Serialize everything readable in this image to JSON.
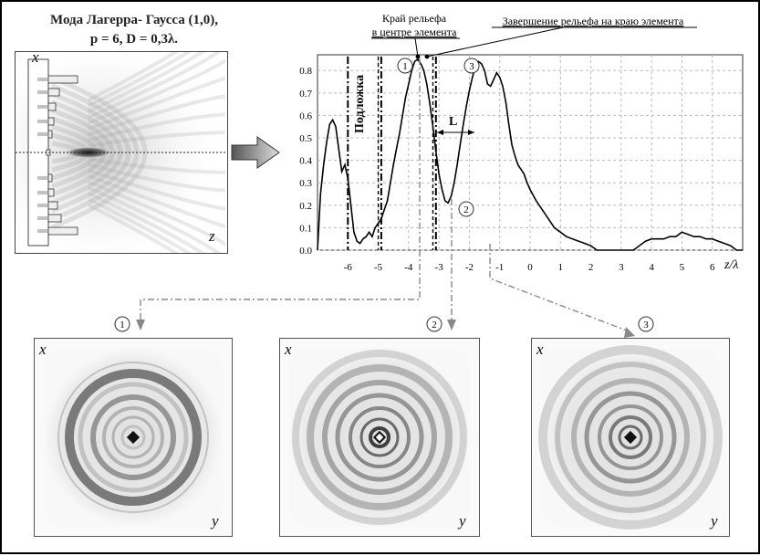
{
  "header": {
    "title_line1": "Мода Лагерра- Гаусса (1,0),",
    "title_line2": "p = 6, D = 0,3λ."
  },
  "sim_panel": {
    "x_label": "x",
    "z_label": "z"
  },
  "chart": {
    "annotation_center": "Край рельефа",
    "annotation_center_2": "в центре элемента",
    "annotation_edge": "Завершение рельефа на краю элемента",
    "substrate_label": "Подложка",
    "L_label": "L",
    "point_labels": [
      "1",
      "2",
      "3"
    ],
    "x_axis_label": "z/λ"
  },
  "chart_data": {
    "type": "line",
    "xlabel": "z/λ",
    "ylabel": "",
    "xlim": [
      -7,
      7
    ],
    "ylim": [
      0,
      0.87
    ],
    "x_ticks": [
      -6,
      -5,
      -4,
      -3,
      -2,
      -1,
      0,
      1,
      2,
      3,
      4,
      5,
      6
    ],
    "y_ticks": [
      0.0,
      0.1,
      0.2,
      0.3,
      0.4,
      0.5,
      0.6,
      0.7,
      0.8
    ],
    "y_tick_labels": [
      "0.0",
      "0.1",
      "0.2",
      "0.3",
      "0.4",
      "0.5",
      "0.6",
      "0.7",
      "0.8"
    ],
    "grid": true,
    "vertical_markers": [
      -6,
      -5,
      -4.9,
      -3.2,
      -3.1
    ],
    "series": [
      {
        "x": [
          -7.0,
          -6.9,
          -6.8,
          -6.7,
          -6.6,
          -6.5,
          -6.4,
          -6.3,
          -6.2,
          -6.1,
          -6.0,
          -5.9,
          -5.8,
          -5.7,
          -5.6,
          -5.5,
          -5.4,
          -5.3,
          -5.2,
          -5.1,
          -5.0,
          -4.9,
          -4.8,
          -4.7,
          -4.6,
          -4.5,
          -4.4,
          -4.3,
          -4.2,
          -4.1,
          -4.0,
          -3.9,
          -3.8,
          -3.7,
          -3.6,
          -3.5,
          -3.4,
          -3.3,
          -3.2,
          -3.1,
          -3.0,
          -2.9,
          -2.8,
          -2.7,
          -2.6,
          -2.5,
          -2.4,
          -2.3,
          -2.2,
          -2.1,
          -2.0,
          -1.9,
          -1.8,
          -1.7,
          -1.6,
          -1.5,
          -1.4,
          -1.3,
          -1.2,
          -1.1,
          -1.0,
          -0.9,
          -0.8,
          -0.7,
          -0.6,
          -0.5,
          -0.4,
          -0.3,
          -0.2,
          -0.1,
          0.0,
          0.2,
          0.4,
          0.6,
          0.8,
          1.0,
          1.2,
          1.4,
          1.6,
          1.8,
          2.0,
          2.2,
          2.4,
          2.6,
          2.8,
          3.0,
          3.2,
          3.4,
          3.6,
          3.8,
          4.0,
          4.2,
          4.4,
          4.6,
          4.8,
          5.0,
          5.2,
          5.4,
          5.6,
          5.8,
          6.0,
          6.2,
          6.4,
          6.6,
          6.8,
          7.0
        ],
        "y": [
          0.0,
          0.25,
          0.38,
          0.48,
          0.56,
          0.58,
          0.55,
          0.45,
          0.35,
          0.38,
          0.32,
          0.2,
          0.08,
          0.04,
          0.03,
          0.05,
          0.06,
          0.08,
          0.06,
          0.1,
          0.12,
          0.14,
          0.18,
          0.22,
          0.3,
          0.38,
          0.45,
          0.52,
          0.6,
          0.68,
          0.74,
          0.8,
          0.84,
          0.85,
          0.83,
          0.8,
          0.74,
          0.65,
          0.55,
          0.44,
          0.34,
          0.27,
          0.22,
          0.21,
          0.24,
          0.3,
          0.38,
          0.47,
          0.56,
          0.64,
          0.71,
          0.77,
          0.82,
          0.84,
          0.83,
          0.8,
          0.74,
          0.73,
          0.76,
          0.79,
          0.77,
          0.73,
          0.66,
          0.56,
          0.47,
          0.42,
          0.38,
          0.36,
          0.34,
          0.3,
          0.27,
          0.22,
          0.18,
          0.14,
          0.1,
          0.08,
          0.06,
          0.05,
          0.04,
          0.03,
          0.02,
          0.0,
          0.0,
          0.0,
          0.0,
          0.0,
          0.0,
          0.0,
          0.02,
          0.04,
          0.05,
          0.05,
          0.05,
          0.06,
          0.06,
          0.08,
          0.07,
          0.06,
          0.06,
          0.05,
          0.05,
          0.04,
          0.03,
          0.02,
          0.0,
          0.0
        ]
      }
    ]
  },
  "images": [
    {
      "label": "1",
      "x_label": "x",
      "y_label": "y"
    },
    {
      "label": "2",
      "x_label": "x",
      "y_label": "y"
    },
    {
      "label": "3",
      "x_label": "x",
      "y_label": "y"
    }
  ]
}
